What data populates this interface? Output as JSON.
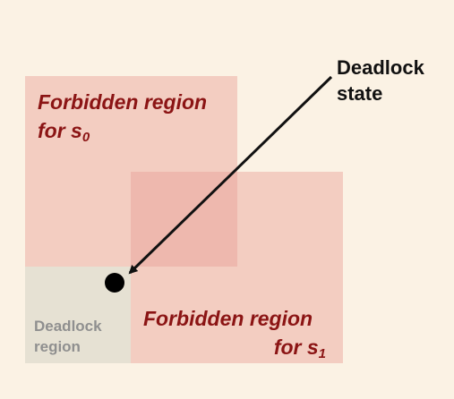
{
  "labels": {
    "forbidden_s0_text": "Forbidden region",
    "forbidden_s0_for": "for s",
    "forbidden_s0_sub": "0",
    "forbidden_s1_text": "Forbidden region",
    "forbidden_s1_for": "for s",
    "forbidden_s1_sub": "1",
    "deadlock_region_line1": "Deadlock",
    "deadlock_region_line2": "region",
    "deadlock_state_line1": "Deadlock",
    "deadlock_state_line2": "state"
  },
  "colors": {
    "forbidden_text": "#8b1414",
    "forbidden_fill": "#e8a096",
    "deadlock_region_fill": "#e6e1d3",
    "background": "#fbf2e4"
  }
}
